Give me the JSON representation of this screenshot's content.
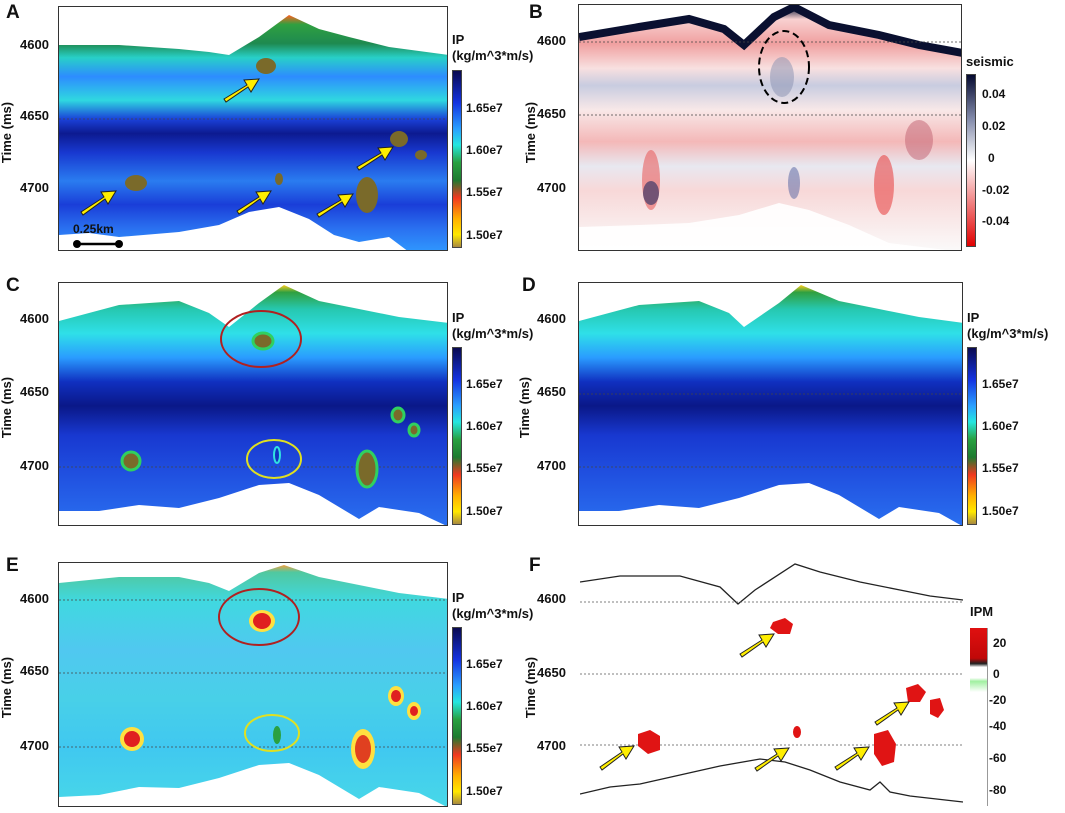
{
  "panels": {
    "A": {
      "letter": "A",
      "ylabel": "Time (ms)",
      "ticks": [
        "4600",
        "4650",
        "4700"
      ],
      "cb_title": "IP",
      "cb_unit": "(kg/m^3*m/s)",
      "cb_ticks": [
        "1.65e7",
        "1.60e7",
        "1.55e7",
        "1.50e7"
      ],
      "scale": "0.25km"
    },
    "B": {
      "letter": "B",
      "ylabel": "Time (ms)",
      "ticks": [
        "4600",
        "4650",
        "4700"
      ],
      "cb_title": "seismic",
      "cb_ticks": [
        "0.04",
        "0.02",
        "0",
        "-0.02",
        "-0.04"
      ]
    },
    "C": {
      "letter": "C",
      "ylabel": "Time (ms)",
      "ticks": [
        "4600",
        "4650",
        "4700"
      ],
      "cb_title": "IP",
      "cb_unit": "(kg/m^3*m/s)",
      "cb_ticks": [
        "1.65e7",
        "1.60e7",
        "1.55e7",
        "1.50e7"
      ]
    },
    "D": {
      "letter": "D",
      "ylabel": "Time (ms)",
      "ticks": [
        "4600",
        "4650",
        "4700"
      ],
      "cb_title": "IP",
      "cb_unit": "(kg/m^3*m/s)",
      "cb_ticks": [
        "1.65e7",
        "1.60e7",
        "1.55e7",
        "1.50e7"
      ]
    },
    "E": {
      "letter": "E",
      "ylabel": "Time (ms)",
      "ticks": [
        "4600",
        "4650",
        "4700"
      ],
      "cb_title": "IP",
      "cb_unit": "(kg/m^3*m/s)",
      "cb_ticks": [
        "1.65e7",
        "1.60e7",
        "1.55e7",
        "1.50e7"
      ]
    },
    "F": {
      "letter": "F",
      "ylabel": "Time (ms)",
      "ticks": [
        "4600",
        "4650",
        "4700"
      ],
      "cb_title": "IPM",
      "cb_ticks": [
        "20",
        "0",
        "-20",
        "-40",
        "-60",
        "-80"
      ]
    }
  },
  "colors": {
    "ip_scale": [
      "#0a1a8a",
      "#1f3fe0",
      "#2f8fff",
      "#2fe0e8",
      "#2aa84a",
      "#f04020",
      "#ffd000",
      "#b89a40"
    ],
    "seismic_scale": [
      "#101838",
      "#8a90b0",
      "#f4f4f8",
      "#f08888",
      "#e01818"
    ],
    "anomaly_ip": "#7a6a2a",
    "anomaly_ipm": "#e01414",
    "arrow": "#ffee00",
    "ellipse_red": "#b02020",
    "ellipse_yellow": "#e0e020"
  }
}
